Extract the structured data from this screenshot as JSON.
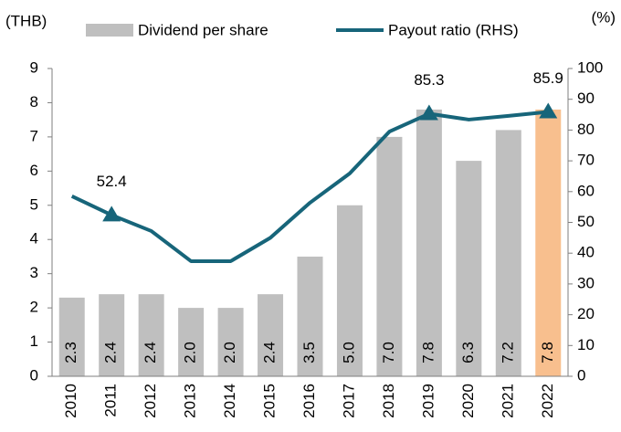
{
  "chart_data": {
    "type": "bar-line",
    "y_unit": "(THB)",
    "y2_unit": "(%)",
    "categories": [
      "2010",
      "2011",
      "2012",
      "2013",
      "2014",
      "2015",
      "2016",
      "2017",
      "2018",
      "2019",
      "2020",
      "2021",
      "2022"
    ],
    "series": [
      {
        "name": "Dividend per share",
        "type": "bar",
        "color": "#bfbfbf",
        "colors": [
          "#bfbfbf",
          "#bfbfbf",
          "#bfbfbf",
          "#bfbfbf",
          "#bfbfbf",
          "#bfbfbf",
          "#bfbfbf",
          "#bfbfbf",
          "#bfbfbf",
          "#bfbfbf",
          "#bfbfbf",
          "#bfbfbf",
          "#f8bf8e"
        ],
        "values": [
          2.3,
          2.4,
          2.4,
          2.0,
          2.0,
          2.4,
          3.5,
          5.0,
          7.0,
          7.8,
          6.3,
          7.2,
          7.8
        ],
        "value_labels": [
          "2.3",
          "2.4",
          "2.4",
          "2.0",
          "2.0",
          "2.4",
          "3.5",
          "5.0",
          "7.0",
          "7.8",
          "6.3",
          "7.2",
          "7.8"
        ]
      },
      {
        "name": "Payout ratio (RHS)",
        "type": "line",
        "axis": "y2",
        "color": "#17657a",
        "values": [
          58.5,
          52.4,
          47.2,
          37.4,
          37.4,
          45.0,
          56.4,
          65.9,
          79.5,
          85.3,
          83.4,
          84.6,
          85.9
        ],
        "value_labels": [
          null,
          "52.4",
          null,
          null,
          null,
          null,
          null,
          null,
          null,
          "85.3",
          null,
          null,
          "85.9"
        ]
      }
    ],
    "ylim": [
      0,
      9
    ],
    "yticks": [
      0,
      1,
      2,
      3,
      4,
      5,
      6,
      7,
      8,
      9
    ],
    "y2lim": [
      0,
      100
    ],
    "y2ticks": [
      0,
      10,
      20,
      30,
      40,
      50,
      60,
      70,
      80,
      90,
      100
    ]
  }
}
